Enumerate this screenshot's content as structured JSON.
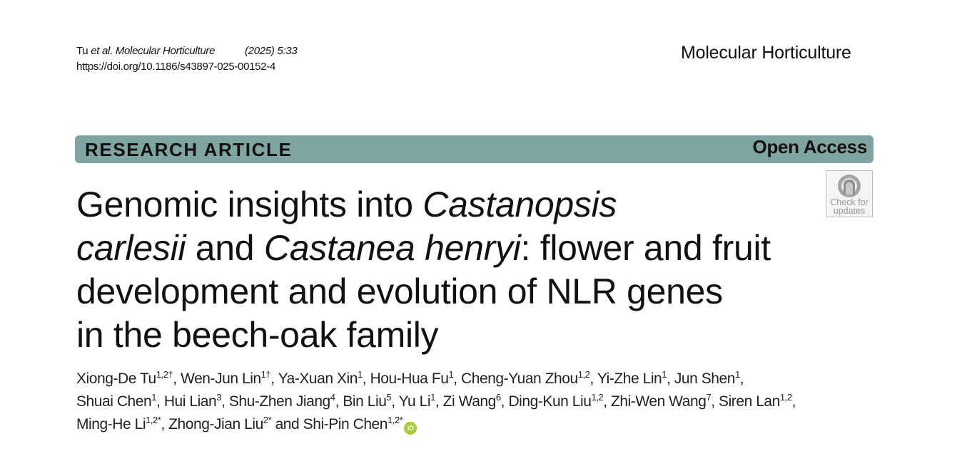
{
  "header": {
    "citation_author": "Tu",
    "citation_etal": "et al. Molecular Horticulture",
    "citation_year_volume": "(2025) 5:33",
    "doi": "https://doi.org/10.1186/s43897-025-00152-4",
    "journal": "Molecular Horticulture"
  },
  "banner": {
    "article_type": "RESEARCH ARTICLE",
    "access": "Open Access",
    "color": "#7fa5a2"
  },
  "check_updates": {
    "line1": "Check for",
    "line2": "updates",
    "icon": "check-for-updates-icon"
  },
  "title": {
    "line1_a": "Genomic insights into ",
    "line1_b": "Castanopsis",
    "line2_a": "carlesii",
    "line2_b": " and ",
    "line2_c": "Castanea henryi",
    "line2_d": ": flower and fruit",
    "line3": "development and evolution of NLR genes",
    "line4": "in the beech-oak family"
  },
  "authors": [
    {
      "name": "Xiong-De Tu",
      "sup": "1,2†"
    },
    {
      "name": "Wen-Jun Lin",
      "sup": "1†"
    },
    {
      "name": "Ya-Xuan Xin",
      "sup": "1"
    },
    {
      "name": "Hou-Hua Fu",
      "sup": "1"
    },
    {
      "name": "Cheng-Yuan Zhou",
      "sup": "1,2"
    },
    {
      "name": "Yi-Zhe Lin",
      "sup": "1"
    },
    {
      "name": "Jun Shen",
      "sup": "1"
    },
    {
      "name": "Shuai Chen",
      "sup": "1"
    },
    {
      "name": "Hui Lian",
      "sup": "3"
    },
    {
      "name": "Shu-Zhen Jiang",
      "sup": "4"
    },
    {
      "name": "Bin Liu",
      "sup": "5"
    },
    {
      "name": "Yu Li",
      "sup": "1"
    },
    {
      "name": "Zi Wang",
      "sup": "6"
    },
    {
      "name": "Ding-Kun Liu",
      "sup": "1,2"
    },
    {
      "name": "Zhi-Wen Wang",
      "sup": "7"
    },
    {
      "name": "Siren Lan",
      "sup": "1,2"
    },
    {
      "name": "Ming-He Li",
      "sup": "1,2*"
    },
    {
      "name": "Zhong-Jian Liu",
      "sup": "2*"
    },
    {
      "name": "Shi-Pin Chen",
      "sup": "1,2*"
    }
  ],
  "authors_conjunction": "and",
  "orcid": {
    "label": "iD",
    "color": "#a6ce39",
    "icon": "orcid-icon"
  }
}
